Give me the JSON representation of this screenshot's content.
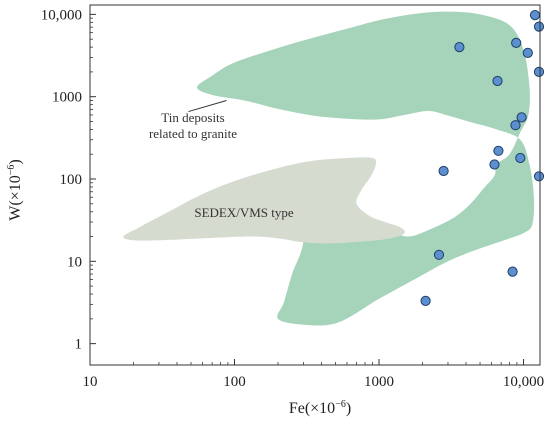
{
  "chart_data": {
    "type": "scatter",
    "x_scale": "log",
    "y_scale": "log",
    "xlim": [
      10,
      13000
    ],
    "ylim": [
      0.55,
      13000
    ],
    "xlabel": {
      "base": "Fe(×10",
      "sup": "−6",
      "end": ")"
    },
    "ylabel": {
      "base": "W(×10",
      "sup": "−6",
      "end": ")"
    },
    "x_ticks": [
      {
        "value": 10,
        "label": "10"
      },
      {
        "value": 100,
        "label": "100"
      },
      {
        "value": 1000,
        "label": "1000"
      },
      {
        "value": 10000,
        "label": "10,000"
      }
    ],
    "y_ticks": [
      {
        "value": 1,
        "label": "1"
      },
      {
        "value": 10,
        "label": "10"
      },
      {
        "value": 100,
        "label": "100"
      },
      {
        "value": 1000,
        "label": "1000"
      },
      {
        "value": 10000,
        "label": "10,000"
      }
    ],
    "regions": [
      {
        "label_lines": [
          "Tin deposits",
          "related to granite"
        ],
        "color": "#a6d4bb",
        "boundary": [
          [
            55,
            1300
          ],
          [
            70,
            1800
          ],
          [
            100,
            2600
          ],
          [
            200,
            3900
          ],
          [
            350,
            5200
          ],
          [
            600,
            6700
          ],
          [
            1000,
            8500
          ],
          [
            1800,
            10200
          ],
          [
            3000,
            10800
          ],
          [
            5000,
            10000
          ],
          [
            8000,
            7400
          ],
          [
            10000,
            3700
          ],
          [
            11000,
            1300
          ],
          [
            10800,
            600
          ],
          [
            9500,
            370
          ],
          [
            8000,
            200
          ],
          [
            6500,
            150
          ],
          [
            6300,
            110
          ],
          [
            5300,
            77
          ],
          [
            4300,
            50
          ],
          [
            3300,
            34
          ],
          [
            2200,
            24
          ],
          [
            1600,
            20
          ],
          [
            1200,
            23
          ],
          [
            820,
            28
          ],
          [
            600,
            40
          ],
          [
            460,
            72
          ],
          [
            400,
            130
          ],
          [
            330,
            160
          ],
          [
            290,
            80
          ],
          [
            300,
            18
          ],
          [
            250,
            7
          ],
          [
            220,
            3.2
          ],
          [
            200,
            2.0
          ],
          [
            300,
            1.7
          ],
          [
            520,
            1.8
          ],
          [
            1000,
            3.5
          ],
          [
            1900,
            6.5
          ],
          [
            3000,
            10
          ],
          [
            4300,
            13
          ],
          [
            6000,
            16
          ],
          [
            8000,
            19
          ],
          [
            10000,
            22
          ],
          [
            11500,
            28
          ],
          [
            11800,
            60
          ],
          [
            11000,
            150
          ],
          [
            9500,
            300
          ],
          [
            6500,
            400
          ],
          [
            4500,
            480
          ],
          [
            3000,
            590
          ],
          [
            2200,
            670
          ],
          [
            1500,
            600
          ],
          [
            1000,
            530
          ],
          [
            600,
            540
          ],
          [
            350,
            590
          ],
          [
            200,
            710
          ],
          [
            120,
            890
          ],
          [
            70,
            1050
          ]
        ]
      },
      {
        "label": "SEDEX/VMS type",
        "color": "#d6dbd0",
        "boundary": [
          [
            17,
            20
          ],
          [
            22,
            26
          ],
          [
            35,
            40
          ],
          [
            65,
            70
          ],
          [
            130,
            110
          ],
          [
            300,
            160
          ],
          [
            600,
            180
          ],
          [
            900,
            180
          ],
          [
            950,
            150
          ],
          [
            870,
            105
          ],
          [
            750,
            72
          ],
          [
            700,
            50
          ],
          [
            850,
            36
          ],
          [
            1100,
            30
          ],
          [
            1400,
            26
          ],
          [
            1500,
            22
          ],
          [
            1200,
            19
          ],
          [
            800,
            17.5
          ],
          [
            450,
            16.5
          ],
          [
            300,
            17
          ],
          [
            200,
            19
          ],
          [
            130,
            20
          ],
          [
            60,
            19
          ],
          [
            30,
            18
          ],
          [
            20,
            18
          ]
        ]
      }
    ],
    "annotation_leader": {
      "from": [
        48,
        660
      ],
      "to": [
        88,
        900
      ]
    },
    "series": [
      {
        "marker_color": "#5b8fcf",
        "marker_edge": "#1f3e66",
        "points": [
          [
            12000,
            9800
          ],
          [
            12800,
            7100
          ],
          [
            3600,
            4000
          ],
          [
            8900,
            4500
          ],
          [
            10700,
            3400
          ],
          [
            12800,
            2000
          ],
          [
            6600,
            1550
          ],
          [
            9700,
            560
          ],
          [
            8800,
            450
          ],
          [
            6700,
            220
          ],
          [
            9500,
            180
          ],
          [
            6300,
            150
          ],
          [
            2800,
            125
          ],
          [
            12800,
            108
          ],
          [
            2600,
            12
          ],
          [
            8400,
            7.5
          ],
          [
            2100,
            3.3
          ]
        ]
      }
    ]
  }
}
